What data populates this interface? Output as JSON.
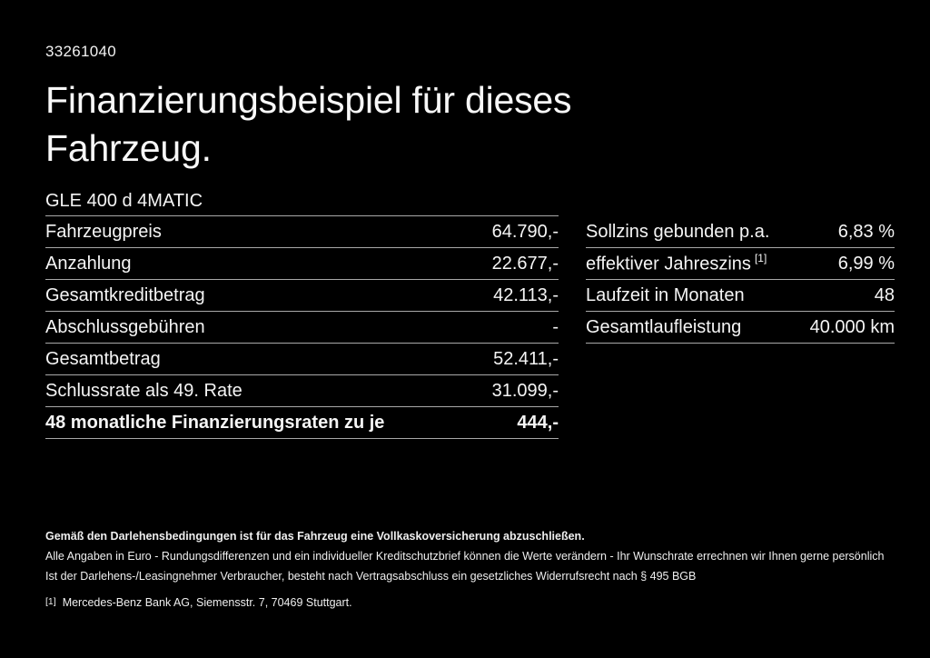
{
  "page": {
    "background_color": "#000000",
    "text_color": "#f5f5f5",
    "divider_color": "#a8a8a8"
  },
  "document_id": "33261040",
  "title": "Finanzierungsbeispiel für dieses Fahrzeug.",
  "vehicle_model": "GLE 400 d 4MATIC",
  "financing_table": {
    "rows": [
      {
        "label": "Fahrzeugpreis",
        "value": "64.790,-"
      },
      {
        "label": "Anzahlung",
        "value": "22.677,-"
      },
      {
        "label": "Gesamtkreditbetrag",
        "value": "42.113,-"
      },
      {
        "label": "Abschlussgebühren",
        "value": "-"
      },
      {
        "label": "Gesamtbetrag",
        "value": "52.411,-"
      },
      {
        "label": "Schlussrate als 49. Rate",
        "value": "31.099,-"
      },
      {
        "label": "48 monatliche Finanzierungsraten zu je",
        "value": "444,-",
        "bold": true
      }
    ]
  },
  "conditions_table": {
    "rows": [
      {
        "label": "Sollzins gebunden p.a.",
        "value": "6,83 %"
      },
      {
        "label": "effektiver Jahreszins",
        "label_superscript": "[1]",
        "value": "6,99 %"
      },
      {
        "label": "Laufzeit in Monaten",
        "value": "48"
      },
      {
        "label": "Gesamtlaufleistung",
        "value": "40.000 km"
      }
    ]
  },
  "disclaimer": {
    "bold_line": "Gemäß den Darlehensbedingungen ist für das Fahrzeug eine Vollkaskoversicherung abzuschließen.",
    "line2": "Alle Angaben in Euro - Rundungsdifferenzen und ein individueller Kreditschutzbrief können die Werte verändern - Ihr Wunschrate errechnen wir Ihnen gerne persönlich",
    "line3": "Ist der Darlehens-/Leasingnehmer Verbraucher, besteht nach Vertragsabschluss ein gesetzliches Widerrufsrecht nach § 495 BGB",
    "footnote_marker": "[1]",
    "footnote": "Mercedes-Benz Bank AG, Siemensstr. 7, 70469 Stuttgart."
  }
}
